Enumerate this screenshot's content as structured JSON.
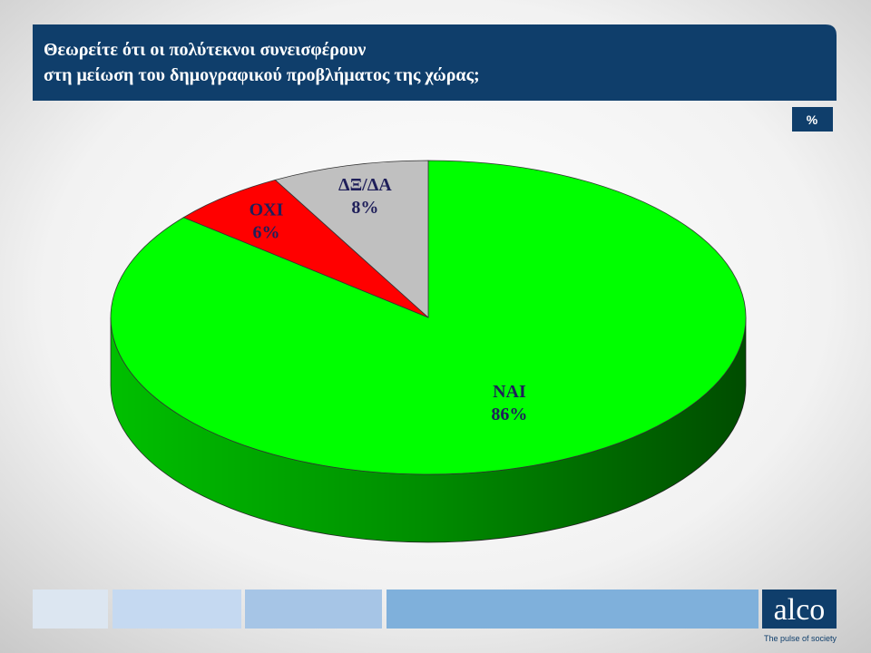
{
  "chart_data": {
    "type": "pie3d",
    "title": [
      "Θεωρείτε ότι οι πολύτεκνοι συνεισφέρουν",
      "στη μείωση του δημογραφικού προβλήματος της χώρας;"
    ],
    "unit_badge": "%",
    "categories": [
      "ΝΑΙ",
      "ΟΧΙ",
      "ΔΞ/ΔΑ"
    ],
    "values": [
      86,
      6,
      8
    ],
    "value_labels": [
      "86%",
      "6%",
      "8%"
    ],
    "colors": [
      "#00ff00",
      "#ff0000",
      "#c0c0c0"
    ]
  },
  "footer": {
    "logo": "alco",
    "tagline": "The pulse of society"
  }
}
